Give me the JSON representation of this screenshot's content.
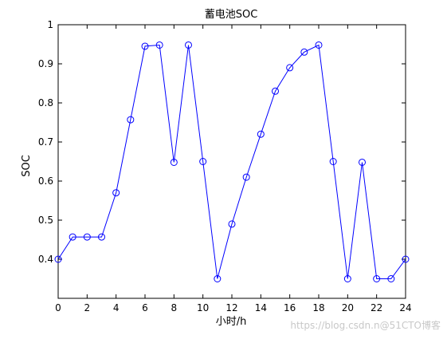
{
  "chart_data": {
    "type": "line",
    "title": "蓄电池SOC",
    "xlabel": "小时/h",
    "ylabel": "SOC",
    "xlim": [
      0,
      24
    ],
    "ylim": [
      0.3,
      1.0
    ],
    "xticks": [
      "0",
      "2",
      "4",
      "6",
      "8",
      "10",
      "12",
      "14",
      "16",
      "18",
      "20",
      "22",
      "24"
    ],
    "yticks": [
      "1",
      "0.9",
      "0.8",
      "0.7",
      "0.6",
      "0.5",
      "0.4"
    ],
    "grid": false,
    "marker": "circle",
    "series": [
      {
        "color": "#0000ff",
        "x": [
          0,
          1,
          2,
          3,
          4,
          5,
          6,
          7,
          8,
          9,
          10,
          11,
          12,
          13,
          14,
          15,
          16,
          17,
          18,
          19,
          20,
          21,
          22,
          23,
          24
        ],
        "values": [
          0.4,
          0.457,
          0.457,
          0.457,
          0.57,
          0.757,
          0.945,
          0.948,
          0.648,
          0.948,
          0.65,
          0.35,
          0.49,
          0.61,
          0.72,
          0.83,
          0.89,
          0.93,
          0.948,
          0.65,
          0.35,
          0.648,
          0.35,
          0.35,
          0.4
        ]
      }
    ]
  },
  "watermark": "https://blog.csdn.n@51CTO博客"
}
